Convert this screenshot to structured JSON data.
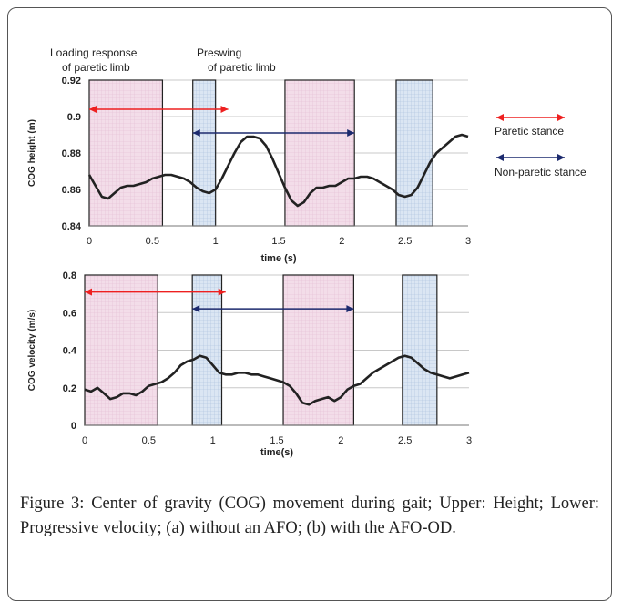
{
  "caption": "Figure 3: Center of gravity (COG) movement during gait; Upper: Height; Lower: Progressive velocity; (a) without an AFO; (b) with the AFO-OD.",
  "colors": {
    "paretic": "#ee2020",
    "nonparetic": "#1c2a6e",
    "pink": "#f3dde9",
    "blue": "#dbe6f3",
    "line": "#222222"
  },
  "annotations": {
    "loading_response": [
      "Loading  response",
      "of paretic limb"
    ],
    "preswing": [
      "Preswing",
      "of paretic limb"
    ]
  },
  "legend": {
    "paretic": "Paretic stance",
    "nonparetic": "Non-paretic stance"
  },
  "chart_data": [
    {
      "type": "line",
      "xlabel": "time (s)",
      "ylabel": "COG height (m)",
      "xlim": [
        0,
        3
      ],
      "ylim": [
        0.84,
        0.92
      ],
      "xticks": [
        0,
        0.5,
        1,
        1.5,
        2,
        2.5,
        3
      ],
      "xtick_labels": [
        "0",
        "0.5",
        "1",
        "1.5",
        "2",
        "2.5",
        "3"
      ],
      "yticks": [
        0.84,
        0.86,
        0.88,
        0.9,
        0.92
      ],
      "ytick_labels": [
        "0.84",
        "0.86",
        "0.88",
        "0.9",
        "0.92"
      ],
      "shaded": [
        {
          "kind": "paretic",
          "x": [
            0,
            0.58
          ]
        },
        {
          "kind": "nonparetic",
          "x": [
            0.82,
            1.0
          ]
        },
        {
          "kind": "paretic",
          "x": [
            1.55,
            2.1
          ]
        },
        {
          "kind": "nonparetic",
          "x": [
            2.43,
            2.72
          ]
        }
      ],
      "arrows": [
        {
          "kind": "paretic",
          "x": [
            0,
            1.1
          ],
          "y": 0.904
        },
        {
          "kind": "nonparetic",
          "x": [
            0.82,
            2.1
          ],
          "y": 0.891
        }
      ],
      "x": [
        0,
        0.05,
        0.1,
        0.15,
        0.2,
        0.25,
        0.3,
        0.35,
        0.4,
        0.45,
        0.5,
        0.55,
        0.6,
        0.65,
        0.7,
        0.75,
        0.8,
        0.85,
        0.9,
        0.95,
        1.0,
        1.05,
        1.1,
        1.15,
        1.2,
        1.25,
        1.3,
        1.35,
        1.4,
        1.45,
        1.5,
        1.55,
        1.6,
        1.65,
        1.7,
        1.75,
        1.8,
        1.85,
        1.9,
        1.95,
        2.0,
        2.05,
        2.1,
        2.15,
        2.2,
        2.25,
        2.3,
        2.35,
        2.4,
        2.45,
        2.5,
        2.55,
        2.6,
        2.65,
        2.7,
        2.75,
        2.8,
        2.85,
        2.9,
        2.95,
        3.0
      ],
      "y": [
        0.868,
        0.862,
        0.856,
        0.855,
        0.858,
        0.861,
        0.862,
        0.862,
        0.863,
        0.864,
        0.866,
        0.867,
        0.868,
        0.868,
        0.867,
        0.866,
        0.864,
        0.861,
        0.859,
        0.858,
        0.86,
        0.866,
        0.873,
        0.88,
        0.886,
        0.889,
        0.889,
        0.888,
        0.884,
        0.877,
        0.869,
        0.861,
        0.854,
        0.851,
        0.853,
        0.858,
        0.861,
        0.861,
        0.862,
        0.862,
        0.864,
        0.866,
        0.866,
        0.867,
        0.867,
        0.866,
        0.864,
        0.862,
        0.86,
        0.857,
        0.856,
        0.857,
        0.861,
        0.868,
        0.875,
        0.88,
        0.883,
        0.886,
        0.889,
        0.89,
        0.889
      ]
    },
    {
      "type": "line",
      "xlabel": "time(s)",
      "ylabel": "COG velocity (m/s)",
      "xlim": [
        0,
        3
      ],
      "ylim": [
        0,
        0.8
      ],
      "xticks": [
        0,
        0.5,
        1,
        1.5,
        2,
        2.5,
        3
      ],
      "xtick_labels": [
        "0",
        "0.5",
        "1",
        "1.5",
        "2",
        "2.5",
        "3"
      ],
      "yticks": [
        0,
        0.2,
        0.4,
        0.6,
        0.8
      ],
      "ytick_labels": [
        "0",
        "0.2",
        "0.4",
        "0.6",
        "0.8"
      ],
      "shaded": [
        {
          "kind": "paretic",
          "x": [
            0,
            0.57
          ]
        },
        {
          "kind": "nonparetic",
          "x": [
            0.84,
            1.07
          ]
        },
        {
          "kind": "paretic",
          "x": [
            1.55,
            2.1
          ]
        },
        {
          "kind": "nonparetic",
          "x": [
            2.48,
            2.75
          ]
        }
      ],
      "arrows": [
        {
          "kind": "paretic",
          "x": [
            0,
            1.1
          ],
          "y": 0.71
        },
        {
          "kind": "nonparetic",
          "x": [
            0.84,
            2.1
          ],
          "y": 0.62
        }
      ],
      "x": [
        0,
        0.05,
        0.1,
        0.15,
        0.2,
        0.25,
        0.3,
        0.35,
        0.4,
        0.45,
        0.5,
        0.55,
        0.6,
        0.65,
        0.7,
        0.75,
        0.8,
        0.85,
        0.9,
        0.95,
        1.0,
        1.05,
        1.1,
        1.15,
        1.2,
        1.25,
        1.3,
        1.35,
        1.4,
        1.45,
        1.5,
        1.55,
        1.6,
        1.65,
        1.7,
        1.75,
        1.8,
        1.85,
        1.9,
        1.95,
        2.0,
        2.05,
        2.1,
        2.15,
        2.2,
        2.25,
        2.3,
        2.35,
        2.4,
        2.45,
        2.5,
        2.55,
        2.6,
        2.65,
        2.7,
        2.75,
        2.8,
        2.85,
        2.9,
        2.95,
        3.0
      ],
      "y": [
        0.19,
        0.18,
        0.2,
        0.17,
        0.14,
        0.15,
        0.17,
        0.17,
        0.16,
        0.18,
        0.21,
        0.22,
        0.23,
        0.25,
        0.28,
        0.32,
        0.34,
        0.35,
        0.37,
        0.36,
        0.32,
        0.28,
        0.27,
        0.27,
        0.28,
        0.28,
        0.27,
        0.27,
        0.26,
        0.25,
        0.24,
        0.23,
        0.21,
        0.17,
        0.12,
        0.11,
        0.13,
        0.14,
        0.15,
        0.13,
        0.15,
        0.19,
        0.21,
        0.22,
        0.25,
        0.28,
        0.3,
        0.32,
        0.34,
        0.36,
        0.37,
        0.36,
        0.33,
        0.3,
        0.28,
        0.27,
        0.26,
        0.25,
        0.26,
        0.27,
        0.28
      ]
    }
  ]
}
